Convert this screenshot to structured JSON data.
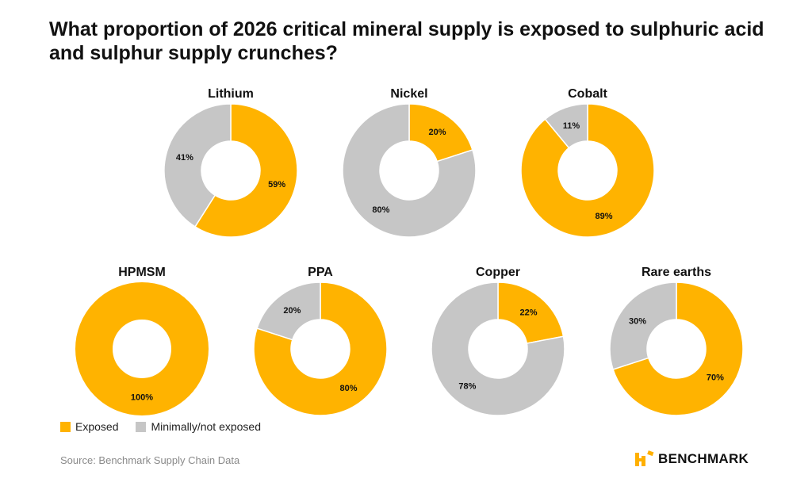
{
  "title": "What proportion of 2026 critical mineral supply is exposed to sulphuric acid and sulphur supply crunches?",
  "source": "Source: Benchmark Supply Chain Data",
  "brand": {
    "name": "BENCHMARK",
    "color": "#FFB000"
  },
  "colors": {
    "exposed": "#FFB300",
    "not_exposed": "#C6C6C6"
  },
  "legend": {
    "exposed": "Exposed",
    "not_exposed": "Minimally/not exposed"
  },
  "chart_data": [
    {
      "type": "pie",
      "title": "Lithium",
      "slices": [
        {
          "label": "59%",
          "value": 59,
          "category": "exposed"
        },
        {
          "label": "41%",
          "value": 41,
          "category": "not_exposed"
        }
      ]
    },
    {
      "type": "pie",
      "title": "Nickel",
      "slices": [
        {
          "label": "20%",
          "value": 20,
          "category": "exposed"
        },
        {
          "label": "80%",
          "value": 80,
          "category": "not_exposed"
        }
      ]
    },
    {
      "type": "pie",
      "title": "Cobalt",
      "slices": [
        {
          "label": "89%",
          "value": 89,
          "category": "exposed"
        },
        {
          "label": "11%",
          "value": 11,
          "category": "not_exposed"
        }
      ]
    },
    {
      "type": "pie",
      "title": "HPMSM",
      "slices": [
        {
          "label": "100%",
          "value": 100,
          "category": "exposed"
        }
      ]
    },
    {
      "type": "pie",
      "title": "PPA",
      "slices": [
        {
          "label": "80%",
          "value": 80,
          "category": "exposed"
        },
        {
          "label": "20%",
          "value": 20,
          "category": "not_exposed"
        }
      ]
    },
    {
      "type": "pie",
      "title": "Copper",
      "slices": [
        {
          "label": "22%",
          "value": 22,
          "category": "exposed"
        },
        {
          "label": "78%",
          "value": 78,
          "category": "not_exposed"
        }
      ]
    },
    {
      "type": "pie",
      "title": "Rare earths",
      "slices": [
        {
          "label": "70%",
          "value": 70,
          "category": "exposed"
        },
        {
          "label": "30%",
          "value": 30,
          "category": "not_exposed"
        }
      ]
    }
  ]
}
